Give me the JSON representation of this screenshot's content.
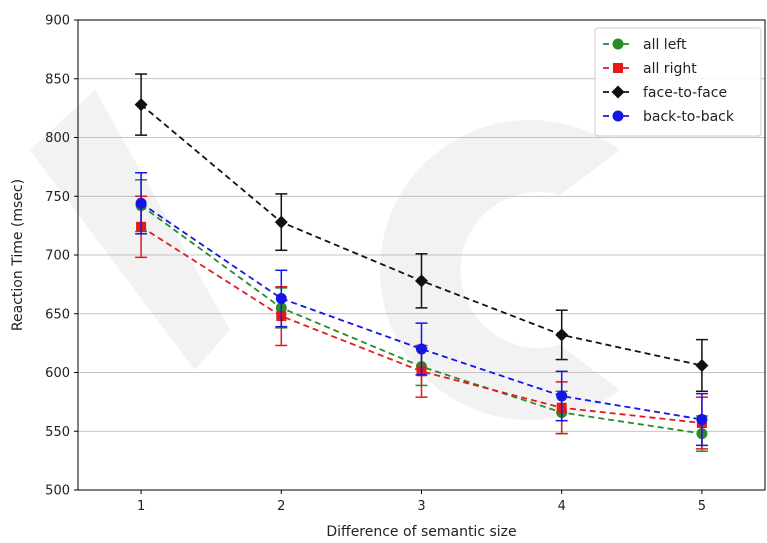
{
  "chart_data": {
    "type": "line",
    "xlabel": "Difference of semantic size",
    "ylabel": "Reaction Time (msec)",
    "x": [
      1,
      2,
      3,
      4,
      5
    ],
    "xticks": [
      "1",
      "2",
      "3",
      "4",
      "5"
    ],
    "xlim": [
      0.55,
      5.45
    ],
    "ylim": [
      500,
      900
    ],
    "yticks": [
      "500",
      "550",
      "600",
      "650",
      "700",
      "750",
      "800",
      "850",
      "900"
    ],
    "grid": "horizontal",
    "legend_position": "top-right",
    "series": [
      {
        "name": "all left",
        "color": "#2a8a2a",
        "marker": "circle",
        "linestyle": "dashed",
        "values": [
          742,
          655,
          605,
          566,
          548
        ],
        "errors": [
          22,
          17,
          16,
          18,
          15
        ]
      },
      {
        "name": "all right",
        "color": "#e41a1a",
        "marker": "square",
        "linestyle": "dashed",
        "values": [
          724,
          648,
          601,
          570,
          557
        ],
        "errors": [
          26,
          25,
          22,
          22,
          22
        ]
      },
      {
        "name": "face-to-face",
        "color": "#111111",
        "marker": "diamond",
        "linestyle": "dashed",
        "values": [
          828,
          728,
          678,
          632,
          606
        ],
        "errors": [
          26,
          24,
          23,
          21,
          22
        ]
      },
      {
        "name": "back-to-back",
        "color": "#1515e6",
        "marker": "circle",
        "linestyle": "dashed",
        "values": [
          744,
          663,
          620,
          580,
          560
        ],
        "errors": [
          26,
          24,
          22,
          21,
          22
        ]
      }
    ]
  }
}
